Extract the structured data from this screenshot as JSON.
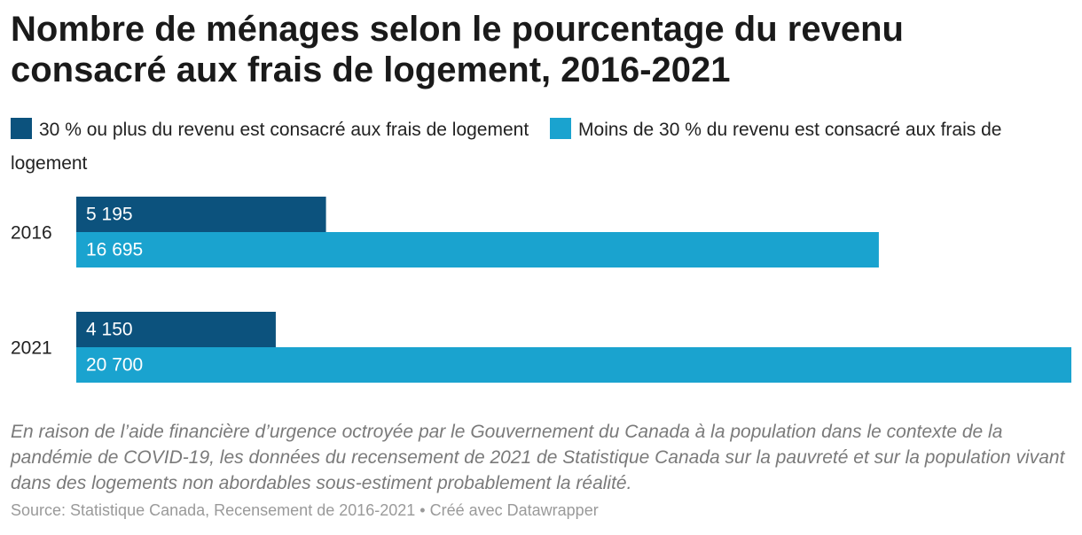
{
  "chart_data": {
    "type": "bar",
    "title": "Nombre de ménages selon le pourcentage du revenu consacré aux frais de logement, 2016-2021",
    "categories": [
      "2016",
      "2021"
    ],
    "series": [
      {
        "name": "30 % ou plus du revenu est consacré aux frais de logement",
        "color": "#0c527d",
        "values": [
          5195,
          4150
        ],
        "value_labels": [
          "5 195",
          "4 150"
        ]
      },
      {
        "name": "Moins de 30 % du revenu est consacré aux frais de logement",
        "color": "#1aa3cf",
        "values": [
          16695,
          20700
        ],
        "value_labels": [
          "16 695",
          "20 700"
        ]
      }
    ],
    "note": "En raison de l’aide financière d’urgence octroyée par le Gouvernement du Canada à la population dans le contexte de la pandémie de COVID-19, les données du recensement de 2021 de Statistique Canada sur la pauvreté et sur la population vivant dans des logements non abordables sous-estiment probablement la réalité.",
    "source": "Source: Statistique Canada, Recensement de 2016-2021 • Créé avec Datawrapper"
  }
}
